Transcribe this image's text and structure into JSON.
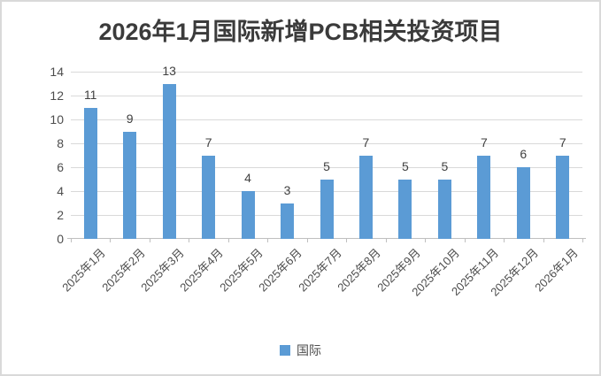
{
  "title": "2026年1月国际新增PCB相关投资项目",
  "legend": {
    "label": "国际",
    "swatch_color": "#5B9BD5"
  },
  "colors": {
    "bar": "#5B9BD5",
    "gridline": "#D9D9D9",
    "axis_line": "#BFBFBF",
    "frame_border": "#D9D9D9",
    "title_text": "#3B3B3B",
    "axis_text": "#4D4D4D",
    "data_label_text": "#404040",
    "background": "#FFFFFF"
  },
  "chart_data": {
    "type": "bar",
    "title": "2026年1月国际新增PCB相关投资项目",
    "categories": [
      "2025年1月",
      "2025年2月",
      "2025年3月",
      "2025年4月",
      "2025年5月",
      "2025年6月",
      "2025年7月",
      "2025年8月",
      "2025年9月",
      "2025年10月",
      "2025年11月",
      "2025年12月",
      "2026年1月"
    ],
    "series": [
      {
        "name": "国际",
        "values": [
          11,
          9,
          13,
          7,
          4,
          3,
          5,
          7,
          5,
          5,
          7,
          6,
          7
        ]
      }
    ],
    "xlabel": "",
    "ylabel": "",
    "ylim": [
      0,
      14
    ],
    "yticks": [
      0,
      2,
      4,
      6,
      8,
      10,
      12,
      14
    ],
    "grid": true,
    "data_labels": true,
    "x_tick_rotation_deg": 45,
    "legend_position": "bottom"
  }
}
